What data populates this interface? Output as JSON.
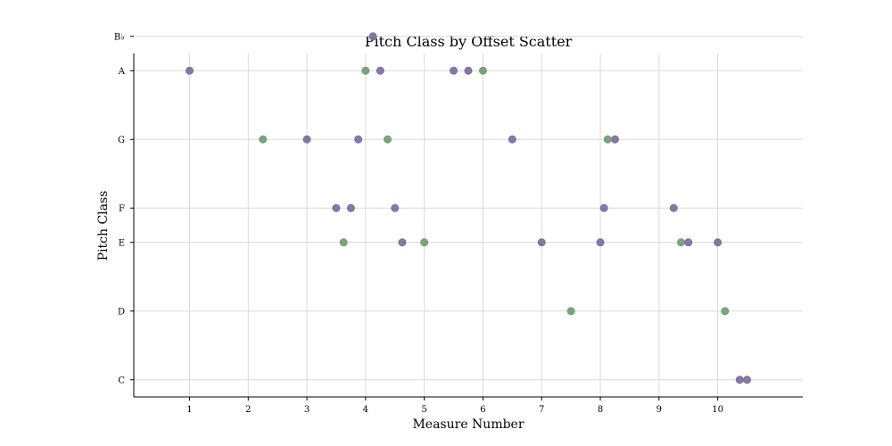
{
  "chart_data": {
    "type": "scatter",
    "title": "Pitch Class by Offset Scatter",
    "xlabel": "Measure Number",
    "ylabel": "Pitch Class",
    "xlim": [
      0.05,
      11.45
    ],
    "ylim": [
      -0.5,
      9.5
    ],
    "x_ticks": [
      "1",
      "2",
      "3",
      "4",
      "5",
      "6",
      "7",
      "8",
      "9",
      "10"
    ],
    "y_ticks": [
      {
        "label": "C",
        "value": 0
      },
      {
        "label": "D",
        "value": 2
      },
      {
        "label": "E",
        "value": 4
      },
      {
        "label": "F",
        "value": 5
      },
      {
        "label": "G",
        "value": 7
      },
      {
        "label": "A",
        "value": 9
      },
      {
        "label": "B♭",
        "value": 10
      }
    ],
    "grid": true,
    "colors": {
      "purple": "#7a6a9e",
      "green": "#6e9a72"
    },
    "series": [
      {
        "color": "purple",
        "points": [
          [
            1.0,
            9
          ],
          [
            3.0,
            7
          ],
          [
            3.5,
            5
          ],
          [
            3.75,
            5
          ],
          [
            3.875,
            7
          ],
          [
            4.125,
            10
          ],
          [
            4.25,
            9
          ],
          [
            4.5,
            5
          ],
          [
            4.625,
            4
          ],
          [
            5.5,
            9
          ],
          [
            5.75,
            9
          ],
          [
            6.5,
            7
          ],
          [
            7.0,
            4
          ],
          [
            8.0,
            4
          ],
          [
            8.0625,
            5
          ],
          [
            8.25,
            7
          ],
          [
            9.25,
            5
          ],
          [
            9.5,
            4
          ],
          [
            10.0,
            4
          ],
          [
            10.375,
            0
          ],
          [
            10.5,
            0
          ]
        ]
      },
      {
        "color": "green",
        "points": [
          [
            2.25,
            7
          ],
          [
            3.625,
            4
          ],
          [
            4.0,
            9
          ],
          [
            4.375,
            7
          ],
          [
            5.0,
            4
          ],
          [
            6.0,
            9
          ],
          [
            7.5,
            2
          ],
          [
            8.125,
            7
          ],
          [
            9.375,
            4
          ],
          [
            10.125,
            2
          ]
        ]
      }
    ]
  }
}
